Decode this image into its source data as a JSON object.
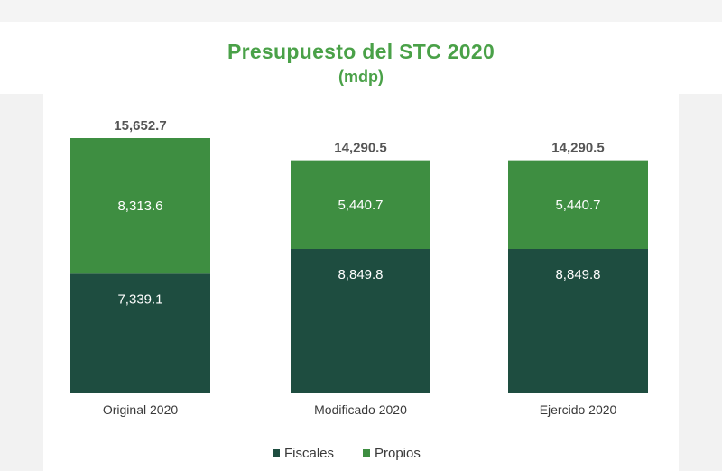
{
  "chart_data": {
    "type": "bar",
    "stacked": true,
    "title": "Presupuesto del STC 2020",
    "subtitle": "(mdp)",
    "categories": [
      "Original 2020",
      "Modificado 2020",
      "Ejercido 2020"
    ],
    "series": [
      {
        "name": "Fiscales",
        "values": [
          7339.1,
          8849.8,
          8849.8
        ],
        "labels": [
          "7,339.1",
          "8,849.8",
          "8,849.8"
        ],
        "color": "#1e4d40"
      },
      {
        "name": "Propios",
        "values": [
          8313.6,
          5440.7,
          5440.7
        ],
        "labels": [
          "8,313.6",
          "5,440.7",
          "5,440.7"
        ],
        "color": "#3e8e41"
      }
    ],
    "totals": [
      "15,652.7",
      "14,290.5",
      "14,290.5"
    ],
    "ylim": [
      0,
      15652.7
    ],
    "legend": "bottom-center",
    "grid": false
  }
}
